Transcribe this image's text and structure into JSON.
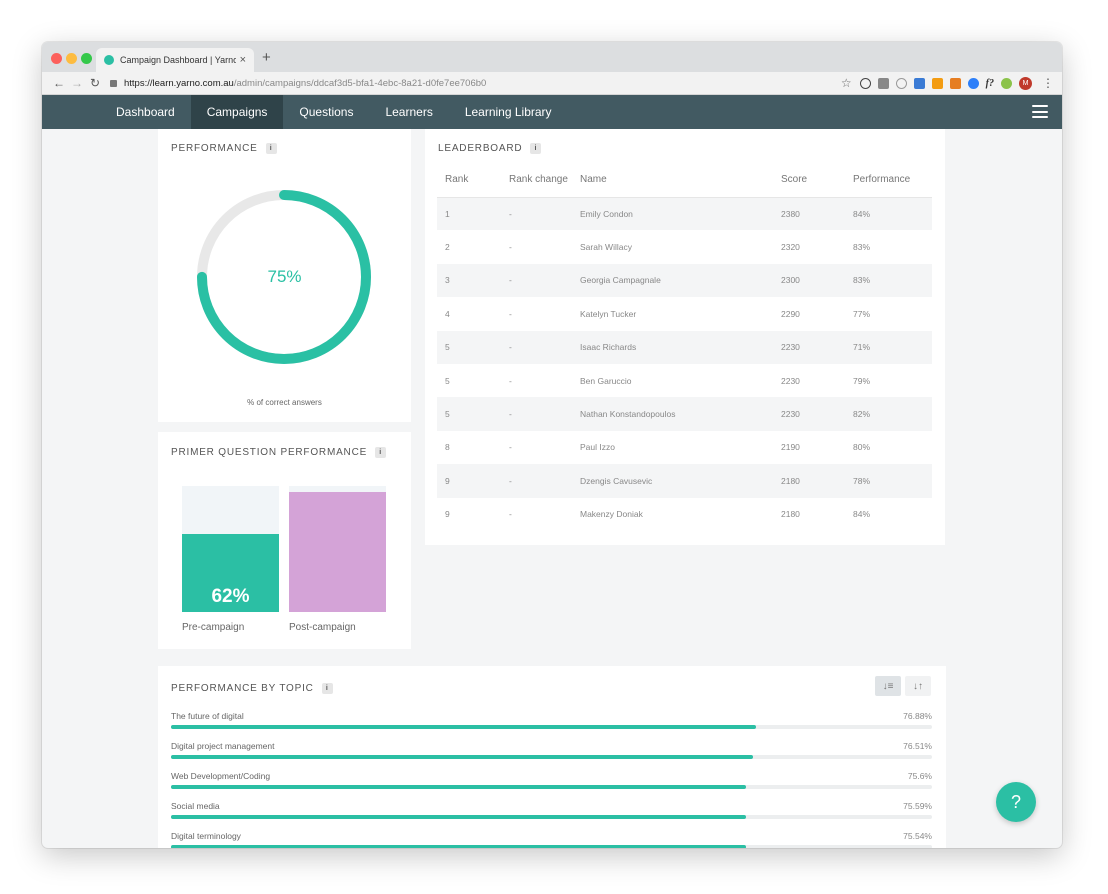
{
  "browser": {
    "tab_title": "Campaign Dashboard | Yarno",
    "tab_close": "×",
    "new_tab": "+",
    "url_host": "https://learn.yarno.com.au",
    "url_path": "/admin/campaigns/ddcaf3d5-bfa1-4ebc-8a21-d0fe7ee706b0",
    "profile_initial": "M",
    "ext_label": "f?"
  },
  "nav": {
    "items": [
      "Dashboard",
      "Campaigns",
      "Questions",
      "Learners",
      "Learning Library"
    ],
    "active": "Campaigns"
  },
  "performance": {
    "title": "PERFORMANCE",
    "value": 75,
    "value_label": "75%",
    "caption": "% of correct answers",
    "colors": {
      "accent": "#2ac0a4",
      "track": "#e8e8e8"
    }
  },
  "primer": {
    "title": "PRIMER QUESTION PERFORMANCE",
    "pre": {
      "label": "Pre-campaign",
      "value": 62,
      "value_label": "62%",
      "color": "#2bbfa4"
    },
    "post": {
      "label": "Post-campaign",
      "value": 95,
      "color": "#d4a3d7"
    }
  },
  "leaderboard": {
    "title": "LEADERBOARD",
    "columns": [
      "Rank",
      "Rank change",
      "Name",
      "Score",
      "Performance"
    ],
    "rows": [
      [
        "1",
        "-",
        "Emily Condon",
        "2380",
        "84%"
      ],
      [
        "2",
        "-",
        "Sarah Willacy",
        "2320",
        "83%"
      ],
      [
        "3",
        "-",
        "Georgia Campagnale",
        "2300",
        "83%"
      ],
      [
        "4",
        "-",
        "Katelyn Tucker",
        "2290",
        "77%"
      ],
      [
        "5",
        "-",
        "Isaac Richards",
        "2230",
        "71%"
      ],
      [
        "5",
        "-",
        "Ben Garuccio",
        "2230",
        "79%"
      ],
      [
        "5",
        "-",
        "Nathan Konstandopoulos",
        "2230",
        "82%"
      ],
      [
        "8",
        "-",
        "Paul Izzo",
        "2190",
        "80%"
      ],
      [
        "9",
        "-",
        "Dzengis Cavusevic",
        "2180",
        "78%"
      ],
      [
        "9",
        "-",
        "Makenzy Doniak",
        "2180",
        "84%"
      ]
    ]
  },
  "topics": {
    "title": "PERFORMANCE BY TOPIC",
    "items": [
      {
        "name": "The future of digital",
        "value": 76.88,
        "label": "76.88%"
      },
      {
        "name": "Digital project management",
        "value": 76.51,
        "label": "76.51%"
      },
      {
        "name": "Web Development/Coding",
        "value": 75.6,
        "label": "75.6%"
      },
      {
        "name": "Social media",
        "value": 75.59,
        "label": "75.59%"
      },
      {
        "name": "Digital terminology",
        "value": 75.54,
        "label": "75.54%"
      }
    ]
  },
  "help": {
    "label": "?"
  }
}
